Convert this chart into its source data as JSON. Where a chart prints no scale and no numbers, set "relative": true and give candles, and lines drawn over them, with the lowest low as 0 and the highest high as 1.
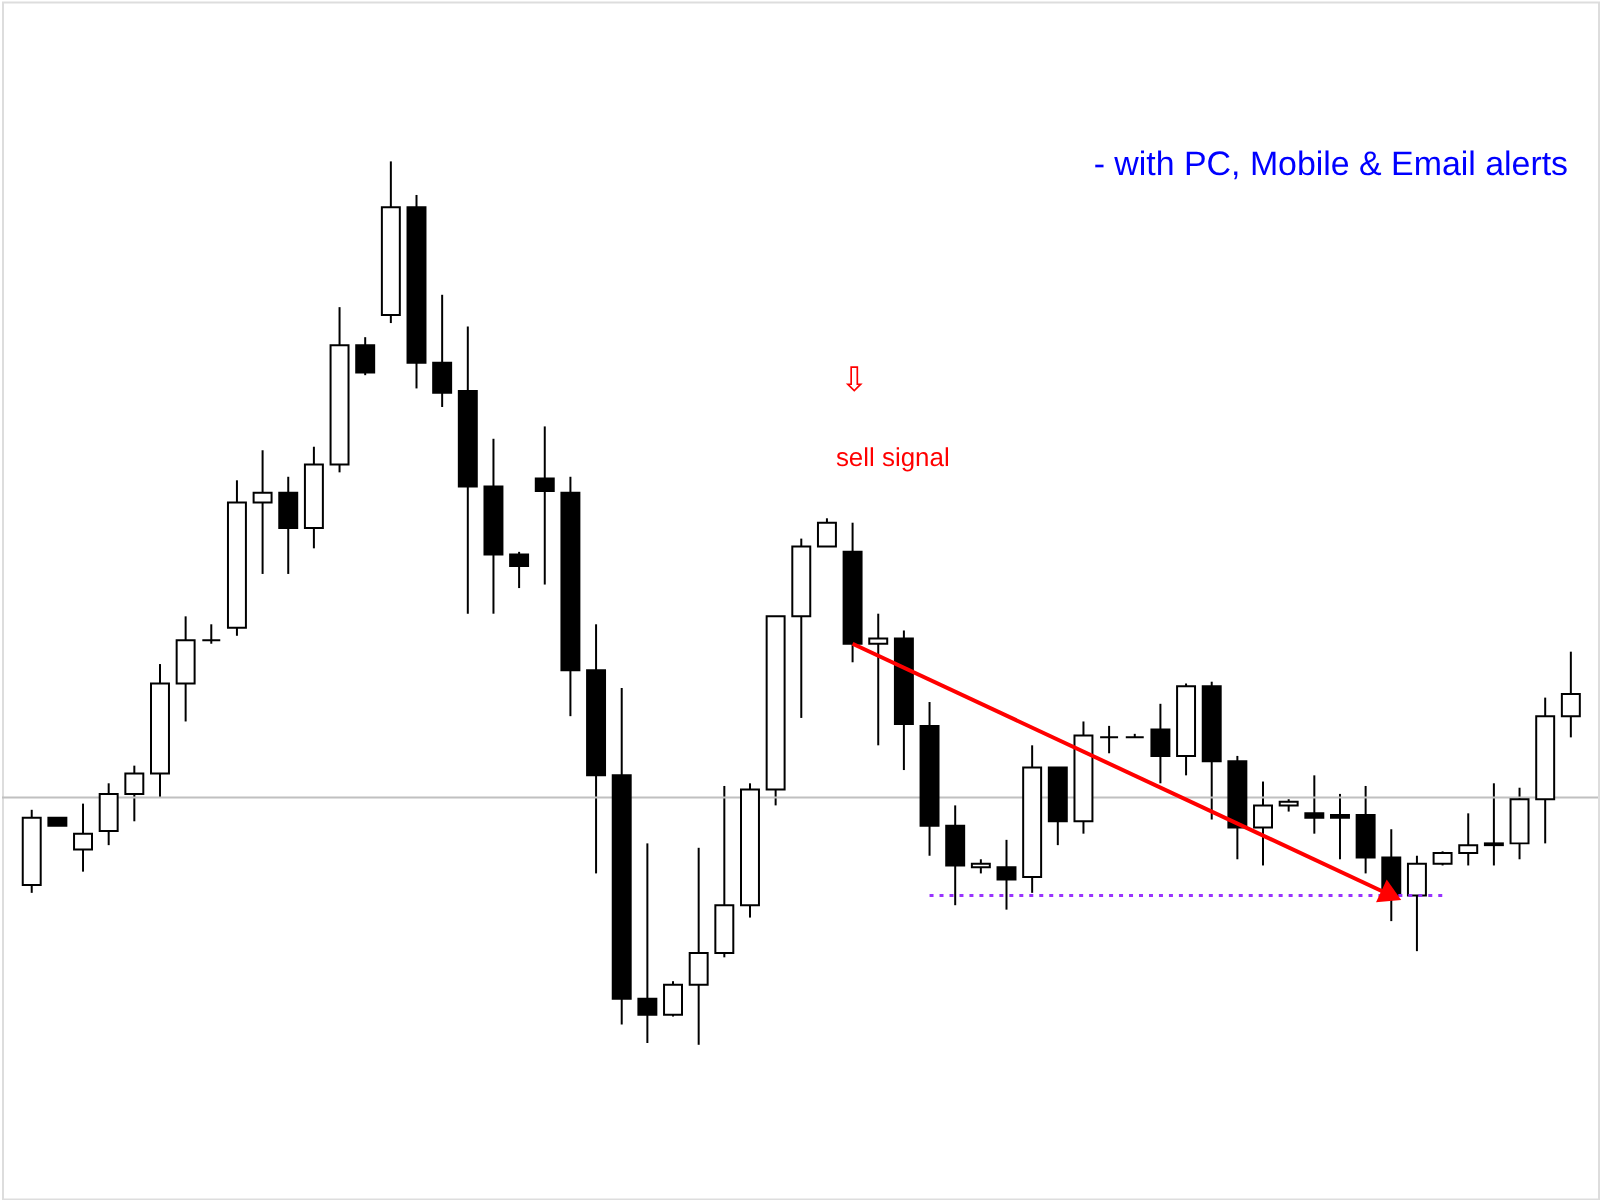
{
  "chart_data": {
    "type": "candlestick",
    "relative": true,
    "annotations": [
      "- with PC, Mobile & Email alerts",
      "⇩",
      "sell signal"
    ],
    "categories": [
      null,
      null,
      null,
      null,
      null,
      null,
      null,
      null,
      null,
      null,
      null,
      null,
      null,
      null,
      null,
      null,
      null,
      null,
      null,
      null,
      null,
      null,
      null,
      null,
      null,
      null,
      null,
      null,
      null,
      null,
      null,
      null,
      null,
      null,
      null,
      null,
      null,
      null,
      null,
      null,
      null,
      null,
      null,
      null,
      null,
      null,
      null,
      null,
      null,
      null,
      null,
      null,
      null,
      null,
      null,
      null,
      null,
      null,
      null,
      null,
      null
    ],
    "ohlc": [
      [
        0.181,
        0.266,
        0.172,
        0.257
      ],
      [
        0.257,
        0.257,
        0.248,
        0.248
      ],
      [
        0.221,
        0.273,
        0.196,
        0.239
      ],
      [
        0.242,
        0.296,
        0.226,
        0.284
      ],
      [
        0.284,
        0.316,
        0.253,
        0.307
      ],
      [
        0.307,
        0.431,
        0.28,
        0.409
      ],
      [
        0.409,
        0.485,
        0.366,
        0.458
      ],
      [
        0.458,
        0.476,
        0.454,
        0.458
      ],
      [
        0.472,
        0.639,
        0.463,
        0.614
      ],
      [
        0.614,
        0.673,
        0.533,
        0.625
      ],
      [
        0.625,
        0.643,
        0.533,
        0.585
      ],
      [
        0.585,
        0.677,
        0.562,
        0.657
      ],
      [
        0.657,
        0.835,
        0.648,
        0.792
      ],
      [
        0.792,
        0.801,
        0.758,
        0.761
      ],
      [
        0.826,
        1.0,
        0.817,
        0.948
      ],
      [
        0.948,
        0.962,
        0.743,
        0.772
      ],
      [
        0.772,
        0.849,
        0.722,
        0.738
      ],
      [
        0.74,
        0.813,
        0.488,
        0.632
      ],
      [
        0.632,
        0.686,
        0.488,
        0.555
      ],
      [
        0.555,
        0.558,
        0.517,
        0.542
      ],
      [
        0.641,
        0.7,
        0.521,
        0.627
      ],
      [
        0.625,
        0.643,
        0.372,
        0.424
      ],
      [
        0.424,
        0.476,
        0.194,
        0.305
      ],
      [
        0.305,
        0.404,
        0.023,
        0.052
      ],
      [
        0.052,
        0.228,
        0.002,
        0.034
      ],
      [
        0.034,
        0.072,
        0.032,
        0.068
      ],
      [
        0.068,
        0.223,
        0.0,
        0.104
      ],
      [
        0.104,
        0.293,
        0.099,
        0.158
      ],
      [
        0.158,
        0.296,
        0.144,
        0.289
      ],
      [
        0.289,
        0.485,
        0.271,
        0.485
      ],
      [
        0.485,
        0.573,
        0.37,
        0.564
      ],
      [
        0.564,
        0.596,
        0.564,
        0.591
      ],
      [
        0.558,
        0.591,
        0.433,
        0.454
      ],
      [
        0.454,
        0.488,
        0.339,
        0.46
      ],
      [
        0.46,
        0.469,
        0.311,
        0.363
      ],
      [
        0.361,
        0.388,
        0.214,
        0.248
      ],
      [
        0.248,
        0.271,
        0.158,
        0.203
      ],
      [
        0.201,
        0.21,
        0.194,
        0.205
      ],
      [
        0.201,
        0.232,
        0.153,
        0.187
      ],
      [
        0.19,
        0.339,
        0.172,
        0.314
      ],
      [
        0.314,
        0.314,
        0.226,
        0.253
      ],
      [
        0.253,
        0.366,
        0.239,
        0.35
      ],
      [
        0.348,
        0.361,
        0.33,
        0.348
      ],
      [
        0.348,
        0.352,
        0.348,
        0.348
      ],
      [
        0.357,
        0.386,
        0.296,
        0.327
      ],
      [
        0.327,
        0.409,
        0.305,
        0.406
      ],
      [
        0.406,
        0.411,
        0.255,
        0.321
      ],
      [
        0.321,
        0.327,
        0.21,
        0.246
      ],
      [
        0.246,
        0.298,
        0.203,
        0.271
      ],
      [
        0.271,
        0.278,
        0.264,
        0.275
      ],
      [
        0.262,
        0.305,
        0.239,
        0.257
      ],
      [
        0.26,
        0.284,
        0.21,
        0.257
      ],
      [
        0.26,
        0.293,
        0.194,
        0.212
      ],
      [
        0.212,
        0.244,
        0.14,
        0.169
      ],
      [
        0.169,
        0.214,
        0.106,
        0.205
      ],
      [
        0.205,
        0.219,
        0.203,
        0.217
      ],
      [
        0.217,
        0.262,
        0.203,
        0.226
      ],
      [
        0.226,
        0.296,
        0.203,
        0.228
      ],
      [
        0.228,
        0.291,
        0.21,
        0.278
      ],
      [
        0.278,
        0.393,
        0.228,
        0.372
      ],
      [
        0.372,
        0.445,
        0.348,
        0.397
      ]
    ],
    "series": [
      {
        "type": "line",
        "color": "#ff0000",
        "values": [
          null,
          null,
          null,
          null,
          null,
          null,
          null,
          null,
          null,
          null,
          null,
          null,
          null,
          null,
          null,
          null,
          null,
          null,
          null,
          null,
          null,
          null,
          null,
          null,
          null,
          null,
          null,
          null,
          null,
          null,
          null,
          null,
          0.454,
          null,
          null,
          null,
          null,
          null,
          null,
          null,
          null,
          null,
          null,
          null,
          null,
          null,
          null,
          null,
          null,
          null,
          null,
          null,
          null,
          0.169,
          null,
          null,
          null,
          null,
          null,
          null,
          null
        ]
      },
      {
        "type": "line",
        "color": "#9933ff",
        "line_style": "dotted",
        "values": [
          null,
          null,
          null,
          null,
          null,
          null,
          null,
          null,
          null,
          null,
          null,
          null,
          null,
          null,
          null,
          null,
          null,
          null,
          null,
          null,
          null,
          null,
          null,
          null,
          null,
          null,
          null,
          null,
          null,
          null,
          null,
          null,
          null,
          null,
          null,
          0.169,
          null,
          null,
          null,
          null,
          null,
          null,
          null,
          null,
          null,
          null,
          null,
          null,
          null,
          null,
          null,
          null,
          null,
          null,
          null,
          0.169,
          null,
          null,
          null,
          null,
          null
        ]
      }
    ],
    "ref_lines": [
      {
        "axis": "y",
        "value": 0.28,
        "color": "#c0c0c0"
      }
    ]
  }
}
